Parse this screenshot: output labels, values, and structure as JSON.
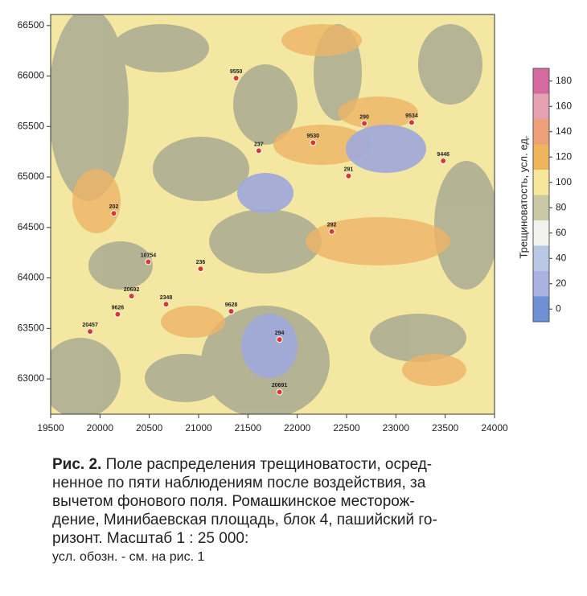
{
  "chart_data": {
    "type": "contour",
    "xlim": [
      19500,
      24000
    ],
    "ylim": [
      62650,
      66610
    ],
    "xticks": [
      19500,
      20000,
      20500,
      21000,
      21500,
      22000,
      22500,
      23000,
      23500,
      24000
    ],
    "yticks": [
      63000,
      63500,
      64000,
      64500,
      65000,
      65500,
      66000,
      66500
    ],
    "wells": {
      "x": [
        21380,
        21610,
        22160,
        22680,
        23160,
        23480,
        22520,
        22350,
        20140,
        20490,
        21020,
        20320,
        20670,
        21330,
        20180,
        19900,
        21820,
        21820
      ],
      "y": [
        65980,
        65260,
        65340,
        65530,
        65540,
        65160,
        65010,
        64460,
        64640,
        64160,
        64090,
        63820,
        63740,
        63670,
        63640,
        63470,
        63390,
        62870
      ],
      "labels": [
        "9550",
        "237",
        "9530",
        "290",
        "9534",
        "9446",
        "291",
        "292",
        "202",
        "10754",
        "236",
        "20692",
        "2348",
        "9628",
        "9626",
        "20457",
        "294",
        "20691"
      ],
      "color": "#d9382e"
    },
    "colorbar": {
      "label": "Трещиноватость, усл. ед.",
      "lim": [
        -10,
        190
      ],
      "ticks": [
        0,
        20,
        40,
        60,
        80,
        100,
        120,
        140,
        160,
        180
      ],
      "colors": [
        "#6f8fd6",
        "#a9b2e0",
        "#b9c8e4",
        "#f2f2ee",
        "#c9c9a6",
        "#f6e79a",
        "#f0b45a",
        "#eea07a",
        "#e6a0b4",
        "#d46aa0"
      ]
    },
    "caption_label": "Рис. 2.",
    "caption_lines": [
      "Поле распределения трещиноватости, осред-",
      "ненное по пяти наблюдениям после воздействия, за",
      "вычетом фонового поля. Ромашкинское месторож-",
      "дение, Минибаевская площадь, блок 4, пашийский го-",
      "ризонт. Масштаб 1 : 25 000:"
    ],
    "legend_note": "усл. обозн. - см. на рис. 1"
  }
}
